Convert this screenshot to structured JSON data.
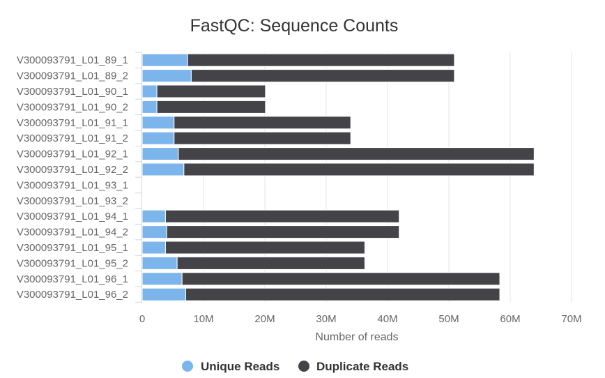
{
  "chart_data": {
    "type": "bar",
    "orientation": "horizontal",
    "stacked": true,
    "title": "FastQC: Sequence Counts",
    "xlabel": "Number of reads",
    "ylabel": "",
    "xlim": [
      0,
      70000000
    ],
    "x_ticks": [
      0,
      10000000,
      20000000,
      30000000,
      40000000,
      50000000,
      60000000,
      70000000
    ],
    "x_tick_labels": [
      "0",
      "10M",
      "20M",
      "30M",
      "40M",
      "50M",
      "60M",
      "70M"
    ],
    "grid": true,
    "legend_position": "bottom-center",
    "categories": [
      "V300093791_L01_89_1",
      "V300093791_L01_89_2",
      "V300093791_L01_90_1",
      "V300093791_L01_90_2",
      "V300093791_L01_91_1",
      "V300093791_L01_91_2",
      "V300093791_L01_92_1",
      "V300093791_L01_92_2",
      "V300093791_L01_93_1",
      "V300093791_L01_93_2",
      "V300093791_L01_94_1",
      "V300093791_L01_94_2",
      "V300093791_L01_95_1",
      "V300093791_L01_95_2",
      "V300093791_L01_96_1",
      "V300093791_L01_96_2"
    ],
    "series": [
      {
        "name": "Unique Reads",
        "color": "#7cb5ec",
        "values": [
          7400000,
          8000000,
          2400000,
          2400000,
          5200000,
          5200000,
          5900000,
          6800000,
          0,
          0,
          3800000,
          4000000,
          3800000,
          5700000,
          6500000,
          7100000
        ]
      },
      {
        "name": "Duplicate Reads",
        "color": "#434348",
        "values": [
          43500000,
          42900000,
          17700000,
          17700000,
          28800000,
          28800000,
          58000000,
          57100000,
          0,
          0,
          38100000,
          37900000,
          32500000,
          30600000,
          51800000,
          51200000
        ]
      }
    ]
  }
}
